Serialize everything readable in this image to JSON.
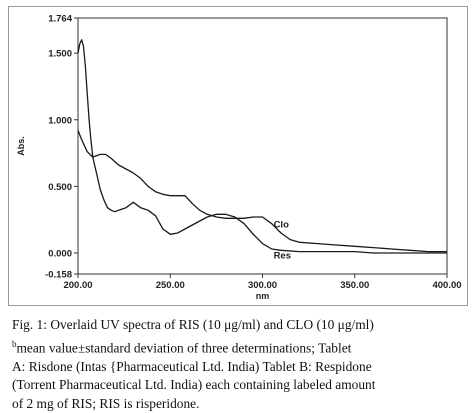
{
  "chart_data": {
    "type": "line",
    "xlabel": "nm",
    "ylabel": "Abs.",
    "xlim": [
      200.0,
      400.0
    ],
    "ylim": [
      -0.158,
      1.764
    ],
    "x_ticks": [
      "200.00",
      "250.00",
      "300.00",
      "350.00",
      "400.00"
    ],
    "y_ticks": [
      {
        "value": 1.764,
        "label": "1.764"
      },
      {
        "value": 1.5,
        "label": "1.500"
      },
      {
        "value": 1.0,
        "label": "1.000"
      },
      {
        "value": 0.5,
        "label": "0.500"
      },
      {
        "value": 0.0,
        "label": "0.000"
      },
      {
        "value": -0.158,
        "label": "-0.158"
      }
    ],
    "grid": false,
    "series": [
      {
        "name": "Clo",
        "x": [
          200,
          202,
          205,
          208,
          212,
          215,
          218,
          222,
          226,
          230,
          234,
          238,
          242,
          246,
          250,
          254,
          258,
          262,
          266,
          270,
          275,
          280,
          285,
          290,
          295,
          300,
          305,
          310,
          315,
          320,
          330,
          340,
          350,
          360,
          370,
          380,
          390,
          400
        ],
        "y": [
          0.92,
          0.85,
          0.76,
          0.72,
          0.74,
          0.74,
          0.71,
          0.66,
          0.63,
          0.6,
          0.56,
          0.5,
          0.46,
          0.44,
          0.43,
          0.43,
          0.43,
          0.37,
          0.32,
          0.29,
          0.27,
          0.26,
          0.26,
          0.26,
          0.27,
          0.27,
          0.22,
          0.15,
          0.1,
          0.08,
          0.07,
          0.06,
          0.05,
          0.04,
          0.03,
          0.02,
          0.01,
          0.01
        ]
      },
      {
        "name": "Res",
        "x": [
          200,
          201,
          202,
          203,
          204,
          205,
          206,
          207,
          208,
          209,
          210,
          212,
          214,
          216,
          218,
          220,
          222,
          224,
          226,
          230,
          234,
          238,
          242,
          246,
          250,
          254,
          258,
          262,
          266,
          270,
          275,
          280,
          285,
          290,
          295,
          300,
          305,
          310,
          320,
          330,
          340,
          350,
          360,
          380,
          400
        ],
        "y": [
          1.5,
          1.57,
          1.6,
          1.55,
          1.4,
          1.2,
          1.0,
          0.85,
          0.72,
          0.66,
          0.6,
          0.48,
          0.4,
          0.34,
          0.32,
          0.31,
          0.32,
          0.33,
          0.34,
          0.38,
          0.34,
          0.32,
          0.28,
          0.18,
          0.14,
          0.15,
          0.18,
          0.21,
          0.24,
          0.27,
          0.29,
          0.29,
          0.27,
          0.22,
          0.14,
          0.07,
          0.03,
          0.02,
          0.01,
          0.01,
          0.01,
          0.01,
          0.0,
          0.0,
          0.0
        ]
      }
    ],
    "annotations": [
      {
        "text": "Clo",
        "series": "Clo"
      },
      {
        "text": "Res",
        "series": "Res"
      }
    ],
    "colors": {
      "line": "#1a1a1a",
      "axis": "#333333"
    }
  },
  "caption": {
    "line1": "Fig. 1: Overlaid UV spectra of RIS (10 μg/ml) and CLO (10 μg/ml)",
    "line2_sup": "b",
    "line2": "mean value±standard deviation of three determinations; Tablet",
    "line3": "A: Risdone (Intas {Pharmaceutical Ltd. India) Tablet B: Respidone",
    "line4": "(Torrent Pharmaceutical Ltd. India) each containing labeled amount",
    "line5": "of 2 mg of RIS; RIS is risperidone."
  }
}
